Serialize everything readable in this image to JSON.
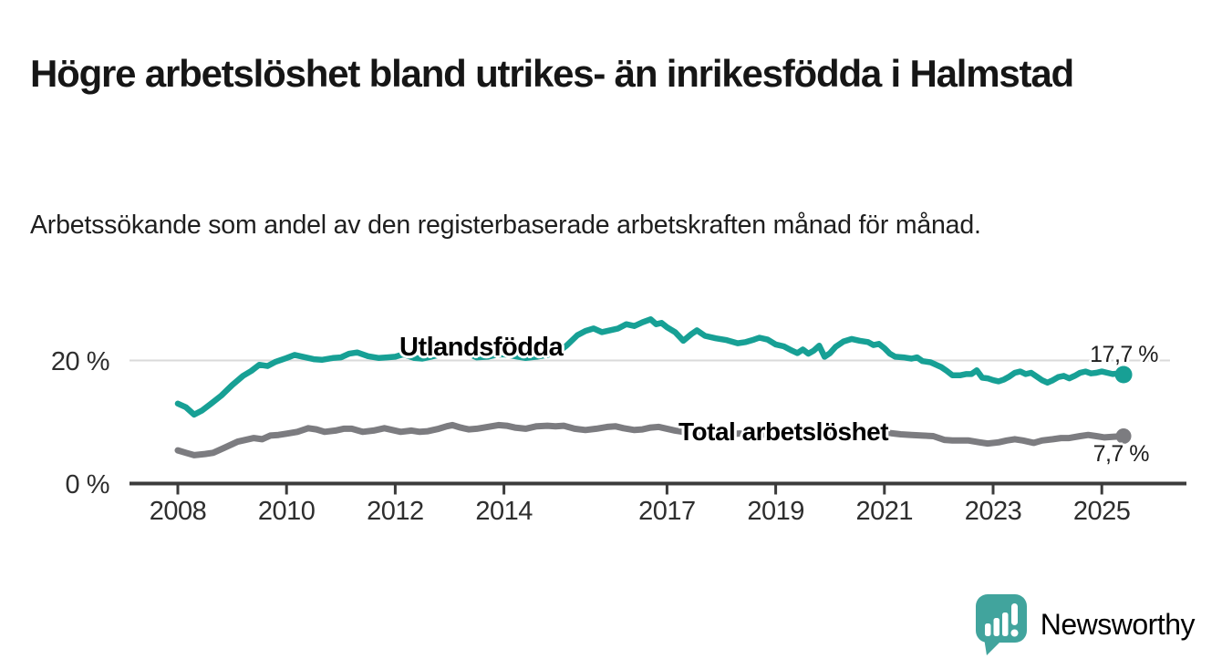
{
  "header": {
    "title": "Högre arbetslöshet bland utrikes- än inrikesfödda i Halmstad",
    "subtitle": "Arbetssökande som andel av den registerbaserade arbetskraften månad för månad."
  },
  "branding": {
    "logo_text": "Newsworthy",
    "logo_icon": "bar-chart-speech-bubble",
    "logo_color": "#41a49d"
  },
  "colors": {
    "series_utlandsfodda": "#17a095",
    "series_total": "#7c7c80",
    "series_total_label": "#67676c",
    "axis": "#3b3b3b",
    "gridline": "#dadada",
    "tick_text": "#2e2e2e"
  },
  "chart_data": {
    "type": "line",
    "x_axis": {
      "ticks": [
        2008,
        2010,
        2012,
        2014,
        2017,
        2019,
        2021,
        2023,
        2025
      ],
      "range": [
        2007.9,
        2025.6
      ]
    },
    "y_axis": {
      "unit": "%",
      "ticks": [
        {
          "value": 0,
          "label": "0 %"
        },
        {
          "value": 20,
          "label": "20 %"
        }
      ],
      "gridlines": [
        20
      ],
      "range": [
        0,
        29
      ]
    },
    "series": [
      {
        "name": "Utlandsfödda",
        "color": "#17a095",
        "end_value": 17.7,
        "end_label": "17,7 %",
        "points": [
          [
            2008.0,
            13.0
          ],
          [
            2008.15,
            12.4
          ],
          [
            2008.3,
            11.2
          ],
          [
            2008.45,
            11.9
          ],
          [
            2008.6,
            12.9
          ],
          [
            2008.8,
            14.3
          ],
          [
            2009.0,
            16.0
          ],
          [
            2009.2,
            17.5
          ],
          [
            2009.35,
            18.3
          ],
          [
            2009.5,
            19.3
          ],
          [
            2009.65,
            19.1
          ],
          [
            2009.8,
            19.8
          ],
          [
            2010.0,
            20.4
          ],
          [
            2010.15,
            20.9
          ],
          [
            2010.3,
            20.6
          ],
          [
            2010.5,
            20.2
          ],
          [
            2010.65,
            20.1
          ],
          [
            2010.85,
            20.4
          ],
          [
            2011.0,
            20.5
          ],
          [
            2011.15,
            21.1
          ],
          [
            2011.3,
            21.3
          ],
          [
            2011.5,
            20.7
          ],
          [
            2011.7,
            20.4
          ],
          [
            2011.85,
            20.5
          ],
          [
            2012.0,
            20.6
          ],
          [
            2012.15,
            21.0
          ],
          [
            2012.35,
            20.4
          ],
          [
            2012.5,
            20.3
          ],
          [
            2012.7,
            20.7
          ],
          [
            2012.85,
            21.0
          ],
          [
            2013.0,
            21.3
          ],
          [
            2013.15,
            21.5
          ],
          [
            2013.35,
            21.1
          ],
          [
            2013.5,
            20.5
          ],
          [
            2013.7,
            20.6
          ],
          [
            2013.85,
            20.9
          ],
          [
            2014.0,
            21.0
          ],
          [
            2014.2,
            20.7
          ],
          [
            2014.4,
            20.4
          ],
          [
            2014.6,
            20.6
          ],
          [
            2014.8,
            20.9
          ],
          [
            2015.0,
            21.4
          ],
          [
            2015.15,
            22.4
          ],
          [
            2015.35,
            24.1
          ],
          [
            2015.5,
            24.8
          ],
          [
            2015.65,
            25.2
          ],
          [
            2015.8,
            24.6
          ],
          [
            2015.95,
            24.9
          ],
          [
            2016.1,
            25.2
          ],
          [
            2016.25,
            25.9
          ],
          [
            2016.4,
            25.6
          ],
          [
            2016.55,
            26.2
          ],
          [
            2016.7,
            26.7
          ],
          [
            2016.8,
            25.9
          ],
          [
            2016.9,
            26.1
          ],
          [
            2017.0,
            25.4
          ],
          [
            2017.15,
            24.6
          ],
          [
            2017.3,
            23.2
          ],
          [
            2017.45,
            24.3
          ],
          [
            2017.55,
            24.9
          ],
          [
            2017.7,
            24.0
          ],
          [
            2017.9,
            23.6
          ],
          [
            2018.1,
            23.3
          ],
          [
            2018.3,
            22.8
          ],
          [
            2018.45,
            23.0
          ],
          [
            2018.6,
            23.4
          ],
          [
            2018.7,
            23.7
          ],
          [
            2018.85,
            23.4
          ],
          [
            2019.0,
            22.6
          ],
          [
            2019.15,
            22.3
          ],
          [
            2019.3,
            21.6
          ],
          [
            2019.4,
            21.2
          ],
          [
            2019.5,
            21.8
          ],
          [
            2019.6,
            21.1
          ],
          [
            2019.7,
            21.6
          ],
          [
            2019.8,
            22.4
          ],
          [
            2019.9,
            20.6
          ],
          [
            2020.0,
            21.2
          ],
          [
            2020.1,
            22.2
          ],
          [
            2020.25,
            23.1
          ],
          [
            2020.4,
            23.5
          ],
          [
            2020.55,
            23.2
          ],
          [
            2020.7,
            23.0
          ],
          [
            2020.8,
            22.5
          ],
          [
            2020.9,
            22.7
          ],
          [
            2021.0,
            22.0
          ],
          [
            2021.1,
            21.1
          ],
          [
            2021.2,
            20.6
          ],
          [
            2021.35,
            20.5
          ],
          [
            2021.5,
            20.3
          ],
          [
            2021.6,
            20.5
          ],
          [
            2021.7,
            19.9
          ],
          [
            2021.85,
            19.7
          ],
          [
            2021.95,
            19.3
          ],
          [
            2022.05,
            18.9
          ],
          [
            2022.15,
            18.3
          ],
          [
            2022.25,
            17.6
          ],
          [
            2022.4,
            17.6
          ],
          [
            2022.5,
            17.8
          ],
          [
            2022.6,
            17.8
          ],
          [
            2022.7,
            18.4
          ],
          [
            2022.8,
            17.2
          ],
          [
            2022.9,
            17.1
          ],
          [
            2023.0,
            16.8
          ],
          [
            2023.1,
            16.6
          ],
          [
            2023.2,
            16.9
          ],
          [
            2023.3,
            17.4
          ],
          [
            2023.4,
            18.0
          ],
          [
            2023.5,
            18.2
          ],
          [
            2023.6,
            17.8
          ],
          [
            2023.7,
            18.0
          ],
          [
            2023.8,
            17.4
          ],
          [
            2023.9,
            16.8
          ],
          [
            2024.0,
            16.4
          ],
          [
            2024.1,
            16.8
          ],
          [
            2024.2,
            17.3
          ],
          [
            2024.3,
            17.5
          ],
          [
            2024.4,
            17.1
          ],
          [
            2024.5,
            17.5
          ],
          [
            2024.6,
            18.0
          ],
          [
            2024.7,
            18.2
          ],
          [
            2024.8,
            17.9
          ],
          [
            2024.9,
            18.0
          ],
          [
            2025.0,
            18.2
          ],
          [
            2025.1,
            18.0
          ],
          [
            2025.2,
            17.8
          ],
          [
            2025.3,
            17.9
          ],
          [
            2025.4,
            17.7
          ]
        ]
      },
      {
        "name": "Total arbetslöshet",
        "color": "#7c7c80",
        "end_value": 7.7,
        "end_label": "7,7 %",
        "points": [
          [
            2008.0,
            5.4
          ],
          [
            2008.15,
            5.0
          ],
          [
            2008.3,
            4.6
          ],
          [
            2008.5,
            4.8
          ],
          [
            2008.65,
            5.0
          ],
          [
            2008.85,
            5.8
          ],
          [
            2009.1,
            6.8
          ],
          [
            2009.25,
            7.1
          ],
          [
            2009.4,
            7.4
          ],
          [
            2009.55,
            7.2
          ],
          [
            2009.7,
            7.8
          ],
          [
            2009.85,
            7.9
          ],
          [
            2010.0,
            8.1
          ],
          [
            2010.2,
            8.4
          ],
          [
            2010.4,
            9.0
          ],
          [
            2010.55,
            8.8
          ],
          [
            2010.7,
            8.4
          ],
          [
            2010.9,
            8.6
          ],
          [
            2011.05,
            8.9
          ],
          [
            2011.2,
            8.9
          ],
          [
            2011.4,
            8.4
          ],
          [
            2011.6,
            8.6
          ],
          [
            2011.8,
            9.0
          ],
          [
            2011.95,
            8.7
          ],
          [
            2012.1,
            8.4
          ],
          [
            2012.3,
            8.6
          ],
          [
            2012.45,
            8.4
          ],
          [
            2012.6,
            8.5
          ],
          [
            2012.8,
            8.9
          ],
          [
            2012.95,
            9.3
          ],
          [
            2013.05,
            9.5
          ],
          [
            2013.2,
            9.1
          ],
          [
            2013.35,
            8.8
          ],
          [
            2013.5,
            8.9
          ],
          [
            2013.7,
            9.2
          ],
          [
            2013.9,
            9.5
          ],
          [
            2014.05,
            9.4
          ],
          [
            2014.2,
            9.1
          ],
          [
            2014.4,
            8.9
          ],
          [
            2014.6,
            9.3
          ],
          [
            2014.8,
            9.4
          ],
          [
            2014.95,
            9.3
          ],
          [
            2015.1,
            9.4
          ],
          [
            2015.3,
            8.9
          ],
          [
            2015.5,
            8.7
          ],
          [
            2015.7,
            8.9
          ],
          [
            2015.9,
            9.2
          ],
          [
            2016.05,
            9.3
          ],
          [
            2016.2,
            9.0
          ],
          [
            2016.4,
            8.7
          ],
          [
            2016.55,
            8.8
          ],
          [
            2016.7,
            9.1
          ],
          [
            2016.85,
            9.2
          ],
          [
            2017.0,
            8.9
          ],
          [
            2017.15,
            8.6
          ],
          [
            2017.3,
            8.4
          ],
          [
            2017.5,
            8.3
          ],
          [
            2017.7,
            8.2
          ],
          [
            2017.9,
            8.1
          ],
          [
            2018.1,
            8.0
          ],
          [
            2018.3,
            8.1
          ],
          [
            2018.5,
            8.2
          ],
          [
            2018.7,
            8.0
          ],
          [
            2018.9,
            7.9
          ],
          [
            2019.1,
            7.8
          ],
          [
            2019.3,
            7.7
          ],
          [
            2019.5,
            7.8
          ],
          [
            2019.7,
            7.6
          ],
          [
            2019.9,
            7.7
          ],
          [
            2020.1,
            8.1
          ],
          [
            2020.3,
            8.5
          ],
          [
            2020.5,
            8.6
          ],
          [
            2020.7,
            8.5
          ],
          [
            2020.9,
            8.3
          ],
          [
            2021.1,
            8.2
          ],
          [
            2021.3,
            8.0
          ],
          [
            2021.5,
            7.9
          ],
          [
            2021.7,
            7.8
          ],
          [
            2021.9,
            7.7
          ],
          [
            2022.1,
            7.1
          ],
          [
            2022.25,
            7.0
          ],
          [
            2022.4,
            7.0
          ],
          [
            2022.55,
            7.0
          ],
          [
            2022.75,
            6.7
          ],
          [
            2022.9,
            6.5
          ],
          [
            2023.1,
            6.7
          ],
          [
            2023.25,
            7.0
          ],
          [
            2023.4,
            7.2
          ],
          [
            2023.55,
            7.0
          ],
          [
            2023.75,
            6.6
          ],
          [
            2023.9,
            7.0
          ],
          [
            2024.1,
            7.2
          ],
          [
            2024.25,
            7.4
          ],
          [
            2024.4,
            7.4
          ],
          [
            2024.6,
            7.7
          ],
          [
            2024.75,
            7.9
          ],
          [
            2024.9,
            7.7
          ],
          [
            2025.05,
            7.5
          ],
          [
            2025.2,
            7.6
          ],
          [
            2025.4,
            7.7
          ]
        ]
      }
    ]
  }
}
